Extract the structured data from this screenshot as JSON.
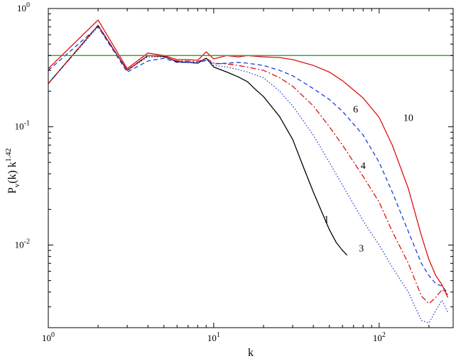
{
  "chart_data": {
    "type": "line",
    "xscale": "log",
    "yscale": "log",
    "xlim": [
      1,
      280
    ],
    "ylim": [
      0.002,
      1
    ],
    "xlabel": "k",
    "ylabel": "P",
    "ylabel_subscript": "v",
    "ylabel_rest": "(k) k",
    "ylabel_superscript": "1.42",
    "grid": false,
    "legend": "none",
    "x_ticks": [
      {
        "value": 1,
        "base": "10",
        "exp": "0"
      },
      {
        "value": 10,
        "base": "10",
        "exp": "1"
      },
      {
        "value": 100,
        "base": "10",
        "exp": "2"
      }
    ],
    "y_ticks": [
      {
        "value": 0.01,
        "base": "10",
        "exp": "-2"
      },
      {
        "value": 0.1,
        "base": "10",
        "exp": "-1"
      },
      {
        "value": 1,
        "base": "10",
        "exp": "0"
      }
    ],
    "series": [
      {
        "label": "1",
        "color": "#000000",
        "dash": "",
        "label_at": [
          48,
          0.0155
        ],
        "points": [
          [
            1,
            0.232
          ],
          [
            2,
            0.72
          ],
          [
            3,
            0.3
          ],
          [
            4,
            0.4
          ],
          [
            5,
            0.395
          ],
          [
            6,
            0.355
          ],
          [
            7,
            0.35
          ],
          [
            8,
            0.345
          ],
          [
            9,
            0.38
          ],
          [
            10,
            0.32
          ],
          [
            12,
            0.29
          ],
          [
            14,
            0.265
          ],
          [
            16,
            0.24
          ],
          [
            18,
            0.205
          ],
          [
            20,
            0.18
          ],
          [
            25,
            0.122
          ],
          [
            30,
            0.078
          ],
          [
            35,
            0.045
          ],
          [
            40,
            0.028
          ],
          [
            45,
            0.019
          ],
          [
            50,
            0.0135
          ],
          [
            55,
            0.0105
          ],
          [
            60,
            0.009
          ],
          [
            64,
            0.0082
          ]
        ]
      },
      {
        "label": "3",
        "color": "#1f3fd6",
        "dash": "1.5,2.5",
        "label_at": [
          78,
          0.0088
        ],
        "points": [
          [
            1,
            0.232
          ],
          [
            2,
            0.7
          ],
          [
            3,
            0.3
          ],
          [
            4,
            0.39
          ],
          [
            5,
            0.39
          ],
          [
            6,
            0.36
          ],
          [
            7,
            0.355
          ],
          [
            8,
            0.35
          ],
          [
            9,
            0.375
          ],
          [
            10,
            0.33
          ],
          [
            12,
            0.32
          ],
          [
            14,
            0.305
          ],
          [
            16,
            0.29
          ],
          [
            20,
            0.26
          ],
          [
            25,
            0.2
          ],
          [
            30,
            0.15
          ],
          [
            40,
            0.085
          ],
          [
            50,
            0.05
          ],
          [
            60,
            0.032
          ],
          [
            80,
            0.016
          ],
          [
            100,
            0.01
          ],
          [
            120,
            0.0065
          ],
          [
            150,
            0.004
          ],
          [
            180,
            0.0023
          ],
          [
            200,
            0.0022
          ],
          [
            220,
            0.0028
          ],
          [
            240,
            0.0034
          ],
          [
            260,
            0.0027
          ]
        ]
      },
      {
        "label": "4",
        "color": "#e01010",
        "dash": "8,3,2,3",
        "label_at": [
          80,
          0.044
        ],
        "points": [
          [
            1,
            0.232
          ],
          [
            2,
            0.72
          ],
          [
            3,
            0.3
          ],
          [
            4,
            0.4
          ],
          [
            5,
            0.39
          ],
          [
            6,
            0.36
          ],
          [
            7,
            0.36
          ],
          [
            8,
            0.355
          ],
          [
            9,
            0.38
          ],
          [
            10,
            0.345
          ],
          [
            12,
            0.34
          ],
          [
            14,
            0.33
          ],
          [
            16,
            0.32
          ],
          [
            20,
            0.3
          ],
          [
            25,
            0.26
          ],
          [
            30,
            0.22
          ],
          [
            40,
            0.15
          ],
          [
            50,
            0.1
          ],
          [
            60,
            0.07
          ],
          [
            80,
            0.038
          ],
          [
            100,
            0.023
          ],
          [
            120,
            0.013
          ],
          [
            150,
            0.007
          ],
          [
            180,
            0.0037
          ],
          [
            200,
            0.0032
          ],
          [
            220,
            0.0036
          ],
          [
            240,
            0.0042
          ],
          [
            260,
            0.0038
          ]
        ]
      },
      {
        "label": "6",
        "color": "#1f3fd6",
        "dash": "6,4",
        "label_at": [
          72,
          0.132
        ],
        "points": [
          [
            1,
            0.3
          ],
          [
            2,
            0.7
          ],
          [
            3,
            0.29
          ],
          [
            4,
            0.36
          ],
          [
            5,
            0.38
          ],
          [
            6,
            0.35
          ],
          [
            7,
            0.35
          ],
          [
            8,
            0.345
          ],
          [
            9,
            0.365
          ],
          [
            10,
            0.34
          ],
          [
            12,
            0.345
          ],
          [
            14,
            0.35
          ],
          [
            16,
            0.345
          ],
          [
            20,
            0.33
          ],
          [
            25,
            0.3
          ],
          [
            30,
            0.27
          ],
          [
            40,
            0.21
          ],
          [
            50,
            0.17
          ],
          [
            60,
            0.135
          ],
          [
            80,
            0.085
          ],
          [
            100,
            0.05
          ],
          [
            120,
            0.028
          ],
          [
            150,
            0.013
          ],
          [
            180,
            0.007
          ],
          [
            200,
            0.0055
          ],
          [
            220,
            0.0047
          ],
          [
            240,
            0.0045
          ],
          [
            260,
            0.0039
          ]
        ]
      },
      {
        "label": "10",
        "color": "#e01010",
        "dash": "",
        "label_at": [
          150,
          0.112
        ],
        "points": [
          [
            1,
            0.31
          ],
          [
            2,
            0.8
          ],
          [
            3,
            0.31
          ],
          [
            4,
            0.42
          ],
          [
            5,
            0.4
          ],
          [
            6,
            0.37
          ],
          [
            7,
            0.37
          ],
          [
            8,
            0.365
          ],
          [
            9,
            0.43
          ],
          [
            10,
            0.375
          ],
          [
            12,
            0.4
          ],
          [
            14,
            0.39
          ],
          [
            16,
            0.4
          ],
          [
            18,
            0.395
          ],
          [
            20,
            0.39
          ],
          [
            25,
            0.385
          ],
          [
            30,
            0.37
          ],
          [
            40,
            0.33
          ],
          [
            50,
            0.29
          ],
          [
            60,
            0.245
          ],
          [
            80,
            0.175
          ],
          [
            100,
            0.12
          ],
          [
            120,
            0.07
          ],
          [
            150,
            0.03
          ],
          [
            180,
            0.012
          ],
          [
            200,
            0.0075
          ],
          [
            220,
            0.0055
          ],
          [
            240,
            0.0046
          ],
          [
            260,
            0.0036
          ]
        ]
      },
      {
        "label": "",
        "color": "#22a822",
        "dash": "",
        "points": [
          [
            1,
            0.4
          ],
          [
            280,
            0.4
          ]
        ]
      }
    ]
  }
}
